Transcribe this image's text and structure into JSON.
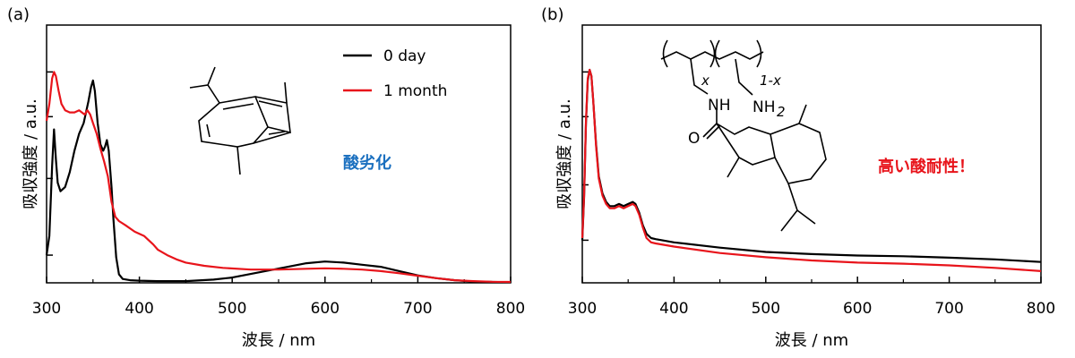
{
  "colors": {
    "series_0": "#000000",
    "series_1": "#e8141b",
    "note_a": "#1a6fbf",
    "note_b": "#e8141b"
  },
  "chart_data": [
    {
      "type": "line",
      "panel_label": "(a)",
      "xlabel": "波長 / nm",
      "ylabel": "吸収強度 / a.u.",
      "xlim": [
        300,
        800
      ],
      "ylim": [
        0,
        1.0
      ],
      "xticks": [
        "300",
        "400",
        "500",
        "600",
        "700",
        "800"
      ],
      "legend": {
        "placement": "top-right",
        "entries": [
          "0 day",
          "1 month"
        ]
      },
      "annotation": "酸劣化",
      "series": [
        {
          "name": "0 day",
          "points": [
            [
              300,
              0.13
            ],
            [
              303,
              0.22
            ],
            [
              306,
              0.55
            ],
            [
              308,
              0.72
            ],
            [
              310,
              0.58
            ],
            [
              312,
              0.47
            ],
            [
              315,
              0.43
            ],
            [
              320,
              0.45
            ],
            [
              325,
              0.52
            ],
            [
              330,
              0.62
            ],
            [
              335,
              0.7
            ],
            [
              340,
              0.75
            ],
            [
              345,
              0.85
            ],
            [
              348,
              0.92
            ],
            [
              350,
              0.95
            ],
            [
              352,
              0.9
            ],
            [
              355,
              0.75
            ],
            [
              358,
              0.65
            ],
            [
              361,
              0.62
            ],
            [
              363,
              0.64
            ],
            [
              365,
              0.67
            ],
            [
              367,
              0.62
            ],
            [
              370,
              0.45
            ],
            [
              372,
              0.3
            ],
            [
              375,
              0.12
            ],
            [
              378,
              0.04
            ],
            [
              382,
              0.018
            ],
            [
              390,
              0.012
            ],
            [
              400,
              0.01
            ],
            [
              420,
              0.008
            ],
            [
              450,
              0.008
            ],
            [
              480,
              0.015
            ],
            [
              500,
              0.025
            ],
            [
              530,
              0.05
            ],
            [
              560,
              0.075
            ],
            [
              580,
              0.092
            ],
            [
              600,
              0.1
            ],
            [
              620,
              0.095
            ],
            [
              640,
              0.085
            ],
            [
              660,
              0.075
            ],
            [
              680,
              0.055
            ],
            [
              700,
              0.035
            ],
            [
              720,
              0.022
            ],
            [
              740,
              0.012
            ],
            [
              760,
              0.006
            ],
            [
              780,
              0.004
            ],
            [
              800,
              0.003
            ]
          ]
        },
        {
          "name": "1 month",
          "points": [
            [
              300,
              0.76
            ],
            [
              303,
              0.84
            ],
            [
              306,
              0.96
            ],
            [
              308,
              0.99
            ],
            [
              310,
              0.97
            ],
            [
              313,
              0.9
            ],
            [
              316,
              0.84
            ],
            [
              320,
              0.81
            ],
            [
              325,
              0.8
            ],
            [
              330,
              0.8
            ],
            [
              335,
              0.81
            ],
            [
              338,
              0.8
            ],
            [
              341,
              0.79
            ],
            [
              344,
              0.81
            ],
            [
              347,
              0.79
            ],
            [
              350,
              0.75
            ],
            [
              354,
              0.7
            ],
            [
              358,
              0.63
            ],
            [
              362,
              0.57
            ],
            [
              366,
              0.5
            ],
            [
              370,
              0.38
            ],
            [
              374,
              0.31
            ],
            [
              378,
              0.29
            ],
            [
              385,
              0.27
            ],
            [
              395,
              0.24
            ],
            [
              405,
              0.22
            ],
            [
              410,
              0.2
            ],
            [
              415,
              0.18
            ],
            [
              420,
              0.155
            ],
            [
              430,
              0.13
            ],
            [
              440,
              0.11
            ],
            [
              450,
              0.095
            ],
            [
              470,
              0.08
            ],
            [
              490,
              0.07
            ],
            [
              520,
              0.062
            ],
            [
              550,
              0.062
            ],
            [
              580,
              0.066
            ],
            [
              600,
              0.068
            ],
            [
              620,
              0.066
            ],
            [
              640,
              0.062
            ],
            [
              660,
              0.055
            ],
            [
              680,
              0.045
            ],
            [
              700,
              0.033
            ],
            [
              720,
              0.022
            ],
            [
              740,
              0.012
            ],
            [
              760,
              0.008
            ],
            [
              780,
              0.005
            ],
            [
              800,
              0.004
            ]
          ]
        }
      ]
    },
    {
      "type": "line",
      "panel_label": "(b)",
      "xlabel": "波長 / nm",
      "ylabel": "吸収強度 / a.u.",
      "xlim": [
        300,
        800
      ],
      "ylim": [
        0,
        1.0
      ],
      "xticks": [
        "300",
        "400",
        "500",
        "600",
        "700",
        "800"
      ],
      "annotation": "高い酸耐性！",
      "series": [
        {
          "color": "black",
          "points": [
            [
              300,
              0.2
            ],
            [
              302,
              0.4
            ],
            [
              304,
              0.75
            ],
            [
              306,
              0.95
            ],
            [
              308,
              1.0
            ],
            [
              310,
              0.97
            ],
            [
              312,
              0.85
            ],
            [
              315,
              0.65
            ],
            [
              318,
              0.5
            ],
            [
              322,
              0.42
            ],
            [
              326,
              0.38
            ],
            [
              330,
              0.36
            ],
            [
              335,
              0.36
            ],
            [
              340,
              0.37
            ],
            [
              345,
              0.36
            ],
            [
              350,
              0.37
            ],
            [
              355,
              0.38
            ],
            [
              358,
              0.37
            ],
            [
              362,
              0.33
            ],
            [
              366,
              0.27
            ],
            [
              370,
              0.23
            ],
            [
              375,
              0.21
            ],
            [
              380,
              0.205
            ],
            [
              400,
              0.19
            ],
            [
              450,
              0.165
            ],
            [
              500,
              0.145
            ],
            [
              550,
              0.135
            ],
            [
              600,
              0.128
            ],
            [
              650,
              0.125
            ],
            [
              700,
              0.118
            ],
            [
              750,
              0.11
            ],
            [
              800,
              0.098
            ]
          ]
        },
        {
          "color": "red",
          "points": [
            [
              300,
              0.21
            ],
            [
              302,
              0.41
            ],
            [
              304,
              0.76
            ],
            [
              306,
              0.96
            ],
            [
              308,
              1.0
            ],
            [
              310,
              0.97
            ],
            [
              312,
              0.85
            ],
            [
              315,
              0.64
            ],
            [
              318,
              0.49
            ],
            [
              322,
              0.41
            ],
            [
              326,
              0.37
            ],
            [
              330,
              0.35
            ],
            [
              335,
              0.35
            ],
            [
              340,
              0.36
            ],
            [
              345,
              0.35
            ],
            [
              350,
              0.36
            ],
            [
              355,
              0.37
            ],
            [
              358,
              0.36
            ],
            [
              362,
              0.32
            ],
            [
              366,
              0.26
            ],
            [
              370,
              0.21
            ],
            [
              375,
              0.19
            ],
            [
              380,
              0.185
            ],
            [
              400,
              0.17
            ],
            [
              450,
              0.14
            ],
            [
              500,
              0.12
            ],
            [
              550,
              0.105
            ],
            [
              600,
              0.095
            ],
            [
              650,
              0.09
            ],
            [
              700,
              0.082
            ],
            [
              750,
              0.07
            ],
            [
              800,
              0.055
            ]
          ]
        }
      ]
    }
  ]
}
